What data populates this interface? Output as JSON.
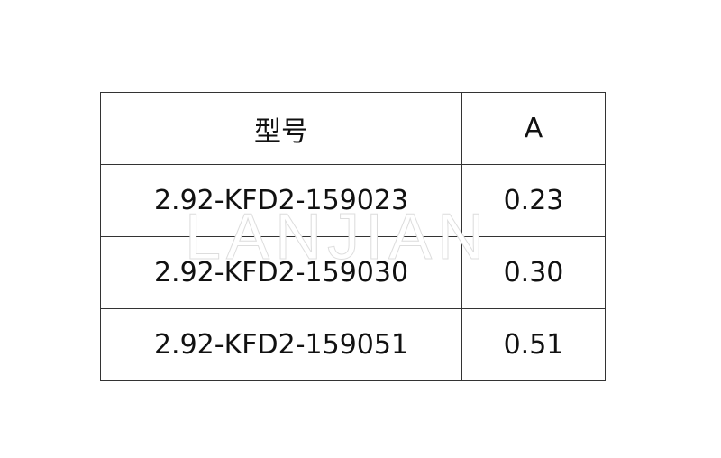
{
  "table": {
    "headers": [
      "型号",
      "A"
    ],
    "rows": [
      [
        "2.92-KFD2-159023",
        "0.23"
      ],
      [
        "2.92-KFD2-159030",
        "0.30"
      ],
      [
        "2.92-KFD2-159051",
        "0.51"
      ]
    ]
  },
  "watermark": "LANJIAN"
}
